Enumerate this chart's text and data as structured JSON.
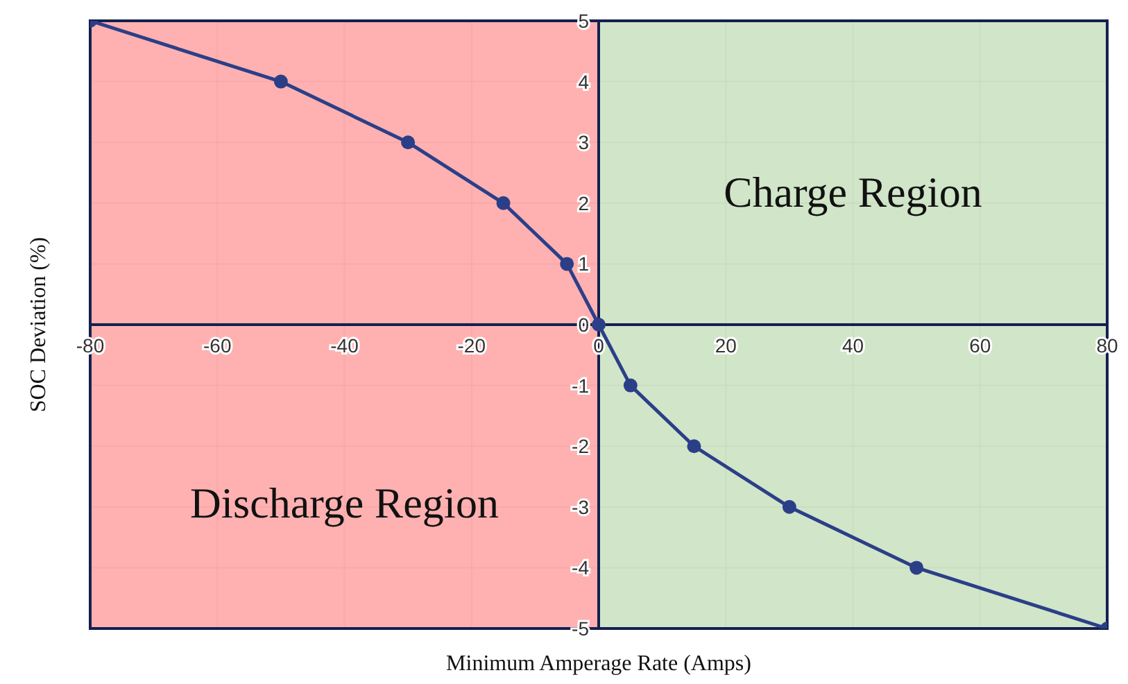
{
  "chart_data": {
    "type": "line",
    "xlabel": "Minimum Amperage Rate (Amps)",
    "ylabel": "SOC Deviation (%)",
    "x": [
      -80,
      -50,
      -30,
      -15,
      -5,
      0,
      5,
      15,
      30,
      50,
      80
    ],
    "series": [
      {
        "color": "#2b3f88",
        "values": [
          5,
          4,
          3,
          2,
          1,
          0,
          -1,
          -2,
          -3,
          -4,
          -5
        ]
      }
    ],
    "xlim": [
      -80,
      80
    ],
    "xticks": [
      -80,
      -60,
      -40,
      -20,
      0,
      20,
      40,
      60,
      80
    ],
    "ylim": [
      -5,
      5
    ],
    "yticks": [
      -5,
      -4,
      -3,
      -2,
      -1,
      0,
      1,
      2,
      3,
      4,
      5
    ],
    "grid": true,
    "marker": "circle",
    "line_style": "solid",
    "legend": false,
    "bands": [
      {
        "axis": "x",
        "from": -80,
        "to": 0,
        "color": "#ffa3a3",
        "label": "Discharge Region"
      },
      {
        "axis": "x",
        "from": 0,
        "to": 80,
        "color": "#c9e0bf",
        "label": "Charge Region"
      }
    ]
  }
}
